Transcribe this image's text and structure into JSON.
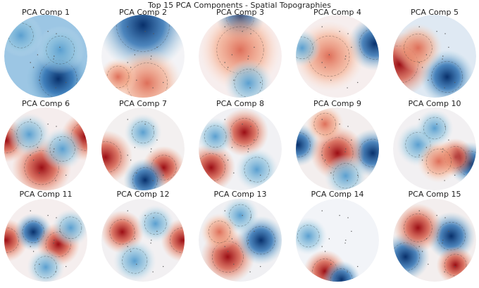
{
  "title": "Top 15 PCA Components - Spatial Topographies",
  "panels": [
    "PCA Comp 1",
    "PCA Comp 2",
    "PCA Comp 3",
    "PCA Comp 4",
    "PCA Comp 5",
    "PCA Comp 6",
    "PCA Comp 7",
    "PCA Comp 8",
    "PCA Comp 9",
    "PCA Comp 10",
    "PCA Comp 11",
    "PCA Comp 12",
    "PCA Comp 13",
    "PCA Comp 14",
    "PCA Comp 15"
  ]
}
